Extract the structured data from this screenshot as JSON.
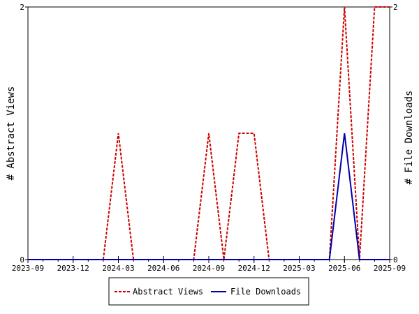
{
  "chart_data": {
    "type": "line",
    "x_ticks": [
      "2023-09",
      "2023-12",
      "2024-03",
      "2024-06",
      "2024-09",
      "2024-12",
      "2025-03",
      "2025-06",
      "2025-09"
    ],
    "y_left_label": "# Abstract Views",
    "y_right_label": "# File Downloads",
    "y_left_ticks": [
      "0",
      "2"
    ],
    "y_right_ticks": [
      "0",
      "2"
    ],
    "ylim": [
      0,
      2
    ],
    "xlim": [
      "2023-09",
      "2025-09"
    ],
    "grid": false,
    "legend_position": "bottom",
    "series": [
      {
        "name": "Abstract Views",
        "axis": "left",
        "color": "#cc0000",
        "dash": true,
        "x": [
          "2023-09",
          "2023-10",
          "2023-11",
          "2023-12",
          "2024-01",
          "2024-02",
          "2024-03",
          "2024-04",
          "2024-05",
          "2024-06",
          "2024-07",
          "2024-08",
          "2024-09",
          "2024-10",
          "2024-11",
          "2024-12",
          "2025-01",
          "2025-02",
          "2025-03",
          "2025-04",
          "2025-05",
          "2025-06",
          "2025-07",
          "2025-08",
          "2025-09"
        ],
        "values": [
          0,
          0,
          0,
          0,
          0,
          0,
          1,
          0,
          0,
          0,
          0,
          0,
          1,
          0,
          1,
          1,
          0,
          0,
          0,
          0,
          0,
          2,
          0,
          2,
          2
        ]
      },
      {
        "name": "File Downloads",
        "axis": "right",
        "color": "#0000aa",
        "dash": false,
        "x": [
          "2023-09",
          "2023-10",
          "2023-11",
          "2023-12",
          "2024-01",
          "2024-02",
          "2024-03",
          "2024-04",
          "2024-05",
          "2024-06",
          "2024-07",
          "2024-08",
          "2024-09",
          "2024-10",
          "2024-11",
          "2024-12",
          "2025-01",
          "2025-02",
          "2025-03",
          "2025-04",
          "2025-05",
          "2025-06",
          "2025-07",
          "2025-08",
          "2025-09"
        ],
        "values": [
          0,
          0,
          0,
          0,
          0,
          0,
          0,
          0,
          0,
          0,
          0,
          0,
          0,
          0,
          0,
          0,
          0,
          0,
          0,
          0,
          0,
          1,
          0,
          0,
          0
        ]
      }
    ]
  }
}
